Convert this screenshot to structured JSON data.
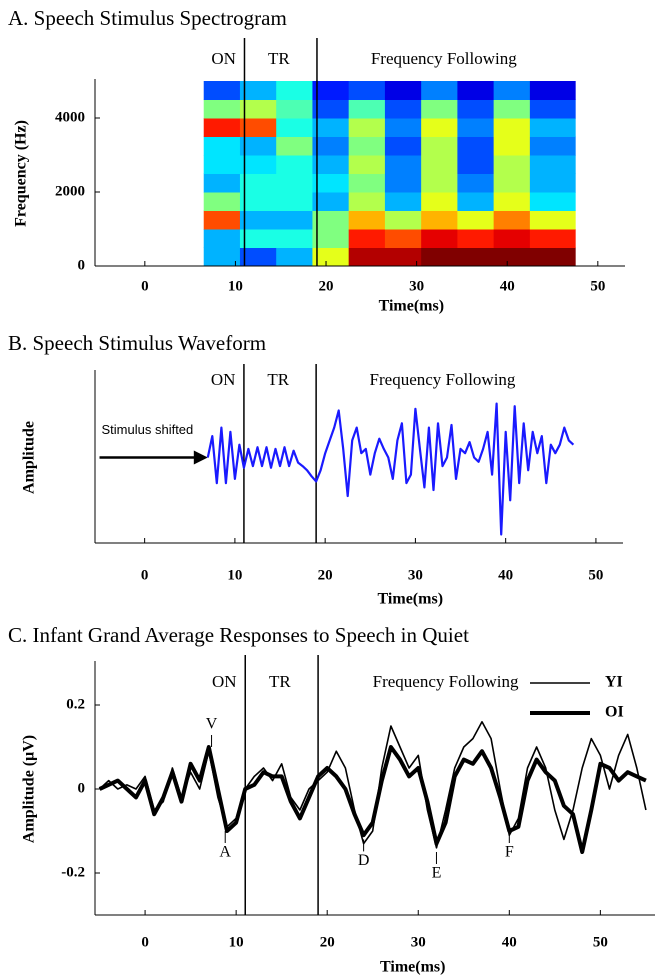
{
  "chart_data": [
    {
      "type": "spectrogram",
      "title": "A. Speech Stimulus Spectrogram",
      "xlabel": "Time(ms)",
      "ylabel": "Frequency (Hz)",
      "xlim": [
        -5.5,
        53
      ],
      "xticks": [
        0,
        10,
        20,
        30,
        40,
        50
      ],
      "ylim": [
        0,
        5000
      ],
      "yticks": [
        0,
        2000,
        4000
      ],
      "colormap": "jet",
      "x_bins": [
        6.5,
        10.5,
        14.5,
        18.5,
        22.5,
        26.5,
        30.5,
        34.5,
        38.5,
        42.5,
        47.5
      ],
      "y_bins": [
        0,
        500,
        1000,
        1500,
        2000,
        2500,
        3000,
        3500,
        4000,
        4500,
        5000
      ],
      "z": [
        [
          0.3,
          0.2,
          0.3,
          0.6,
          0.95,
          0.95,
          1,
          1,
          1,
          1
        ],
        [
          0.3,
          0.4,
          0.4,
          0.5,
          0.85,
          0.8,
          0.9,
          0.85,
          0.9,
          0.85
        ],
        [
          0.8,
          0.3,
          0.3,
          0.5,
          0.7,
          0.55,
          0.7,
          0.6,
          0.75,
          0.6
        ],
        [
          0.5,
          0.4,
          0.4,
          0.3,
          0.55,
          0.3,
          0.6,
          0.3,
          0.6,
          0.35
        ],
        [
          0.3,
          0.4,
          0.4,
          0.35,
          0.5,
          0.25,
          0.55,
          0.25,
          0.55,
          0.3
        ],
        [
          0.35,
          0.35,
          0.4,
          0.3,
          0.55,
          0.25,
          0.55,
          0.2,
          0.55,
          0.3
        ],
        [
          0.35,
          0.3,
          0.5,
          0.25,
          0.5,
          0.2,
          0.55,
          0.2,
          0.6,
          0.25
        ],
        [
          0.85,
          0.8,
          0.4,
          0.3,
          0.55,
          0.25,
          0.6,
          0.25,
          0.6,
          0.3
        ],
        [
          0.5,
          0.55,
          0.45,
          0.2,
          0.45,
          0.2,
          0.5,
          0.2,
          0.5,
          0.2
        ],
        [
          0.2,
          0.3,
          0.4,
          0.15,
          0.2,
          0.1,
          0.25,
          0.1,
          0.25,
          0.1
        ]
      ],
      "vlines": [
        11,
        19
      ],
      "region_labels": [
        {
          "text": "ON",
          "x": 8.7
        },
        {
          "text": "TR",
          "x": 14.8
        },
        {
          "text": "Frequency Following",
          "x": 33
        }
      ]
    },
    {
      "type": "line",
      "title": "B. Speech Stimulus Waveform",
      "xlabel": "Time(ms)",
      "ylabel": "Amplitude",
      "xlim": [
        -5.5,
        53
      ],
      "xticks": [
        0,
        10,
        20,
        30,
        40,
        50
      ],
      "ylim": [
        -1,
        1
      ],
      "vlines": [
        11,
        19
      ],
      "region_labels": [
        {
          "text": "ON",
          "x": 8.7
        },
        {
          "text": "TR",
          "x": 14.8
        },
        {
          "text": "Frequency Following",
          "x": 33
        }
      ],
      "arrow": {
        "text": "Stimulus shifted",
        "x0": -5,
        "x1": 7,
        "y": 0
      },
      "x": [
        7,
        7.5,
        8,
        8.5,
        9,
        9.5,
        10,
        10.5,
        11,
        11.5,
        12,
        12.5,
        13,
        13.5,
        14,
        14.5,
        15,
        15.5,
        16,
        16.5,
        17,
        17.5,
        18,
        18.5,
        19,
        19.5,
        20,
        20.5,
        21,
        21.5,
        22,
        22.5,
        23,
        23.5,
        24,
        24.5,
        25,
        25.5,
        26,
        26.5,
        27,
        27.5,
        28,
        28.5,
        29,
        29.5,
        30,
        30.5,
        31,
        31.5,
        32,
        32.5,
        33,
        33.5,
        34,
        34.5,
        35,
        35.5,
        36,
        36.5,
        37,
        37.5,
        38,
        38.5,
        39,
        39.5,
        40,
        40.5,
        41,
        41.5,
        42,
        42.5,
        43,
        43.5,
        44,
        44.5,
        45,
        45.5,
        46,
        46.5,
        47,
        47.5
      ],
      "series": [
        {
          "color": "#1a1aff",
          "line_width": 2.2,
          "values": [
            0,
            0.25,
            -0.3,
            0.35,
            -0.3,
            0.3,
            -0.25,
            0.15,
            -0.12,
            0.1,
            -0.1,
            0.12,
            -0.1,
            0.12,
            -0.12,
            0.1,
            -0.1,
            0.12,
            -0.1,
            0.08,
            -0.06,
            -0.1,
            -0.15,
            -0.22,
            -0.28,
            -0.15,
            0.05,
            0.2,
            0.35,
            0.55,
            0.1,
            -0.45,
            0.2,
            0.35,
            0.05,
            0.1,
            -0.2,
            0.05,
            0.22,
            0.1,
            0,
            -0.25,
            0.2,
            0.4,
            -0.3,
            -0.2,
            0.57,
            0.1,
            -0.35,
            0.35,
            -0.38,
            0.4,
            -0.1,
            0,
            0.38,
            -0.25,
            0.1,
            0.05,
            0.18,
            0,
            -0.05,
            0.1,
            0.3,
            -0.2,
            0.63,
            -0.9,
            0.3,
            -0.5,
            0.6,
            -0.3,
            0.4,
            -0.15,
            0.3,
            0.05,
            0.25,
            -0.3,
            0.15,
            0.05,
            0.15,
            0.35,
            0.2,
            0.15
          ]
        }
      ]
    },
    {
      "type": "line",
      "title": "C. Infant Grand Average Responses to Speech in Quiet",
      "xlabel": "Time(ms)",
      "ylabel": "Amplitude (μV)",
      "xlim": [
        -5.5,
        56
      ],
      "xticks": [
        0,
        10,
        20,
        30,
        40,
        50
      ],
      "ylim": [
        -0.3,
        0.3
      ],
      "yticks": [
        -0.2,
        0,
        0.2
      ],
      "vlines": [
        11,
        19
      ],
      "region_labels": [
        {
          "text": "ON",
          "x": 8.7
        },
        {
          "text": "TR",
          "x": 14.8
        },
        {
          "text": "Frequency Following",
          "x": 33
        }
      ],
      "legend": "upper right",
      "peak_labels": [
        {
          "text": "V",
          "x": 7.3,
          "y": 0.1
        },
        {
          "text": "A",
          "x": 8.8,
          "y": -0.1
        },
        {
          "text": "D",
          "x": 24,
          "y": -0.12
        },
        {
          "text": "E",
          "x": 32,
          "y": -0.15
        },
        {
          "text": "F",
          "x": 40,
          "y": -0.1
        }
      ],
      "x": [
        -5,
        -4,
        -3,
        -2,
        -1,
        0,
        1,
        2,
        3,
        4,
        5,
        6,
        7,
        8,
        9,
        10,
        11,
        12,
        13,
        14,
        15,
        16,
        17,
        18,
        19,
        20,
        21,
        22,
        23,
        24,
        25,
        26,
        27,
        28,
        29,
        30,
        31,
        32,
        33,
        34,
        35,
        36,
        37,
        38,
        39,
        40,
        41,
        42,
        43,
        44,
        45,
        46,
        47,
        48,
        49,
        50,
        51,
        52,
        53,
        54,
        55
      ],
      "series": [
        {
          "name": "YI",
          "color": "#000000",
          "line_width": 1.6,
          "values": [
            0,
            0.02,
            0,
            0.01,
            0,
            0.03,
            -0.05,
            -0.03,
            0.05,
            -0.02,
            0.04,
            0,
            0.09,
            -0.02,
            -0.09,
            -0.07,
            0,
            0.03,
            0.05,
            0.02,
            0.06,
            -0.02,
            -0.05,
            0,
            0.02,
            0.04,
            0.09,
            0.05,
            -0.05,
            -0.13,
            -0.1,
            0.05,
            0.15,
            0.1,
            0.05,
            0.08,
            -0.05,
            -0.14,
            -0.05,
            0.05,
            0.1,
            0.12,
            0.16,
            0.12,
            0,
            -0.11,
            -0.07,
            0.05,
            0.1,
            0.05,
            -0.05,
            -0.12,
            -0.05,
            0.05,
            0.12,
            0.08,
            0,
            0.08,
            0.13,
            0.05,
            -0.05
          ]
        },
        {
          "name": "OI",
          "color": "#000000",
          "line_width": 4,
          "values": [
            0,
            0.01,
            0.02,
            0,
            -0.02,
            0.02,
            -0.06,
            -0.02,
            0.04,
            -0.03,
            0.06,
            0.02,
            0.1,
            0,
            -0.1,
            -0.08,
            0,
            0.01,
            0.04,
            0.03,
            0.03,
            -0.03,
            -0.07,
            -0.02,
            0.03,
            0.05,
            0.03,
            0,
            -0.06,
            -0.11,
            -0.08,
            0.02,
            0.1,
            0.07,
            0.03,
            0.05,
            -0.03,
            -0.13,
            -0.08,
            0.03,
            0.07,
            0.06,
            0.09,
            0.05,
            -0.02,
            -0.1,
            -0.09,
            0.02,
            0.07,
            0.04,
            0.02,
            -0.04,
            -0.06,
            -0.15,
            -0.05,
            0.06,
            0.05,
            0.02,
            0.04,
            0.03,
            0.02
          ]
        }
      ]
    }
  ]
}
